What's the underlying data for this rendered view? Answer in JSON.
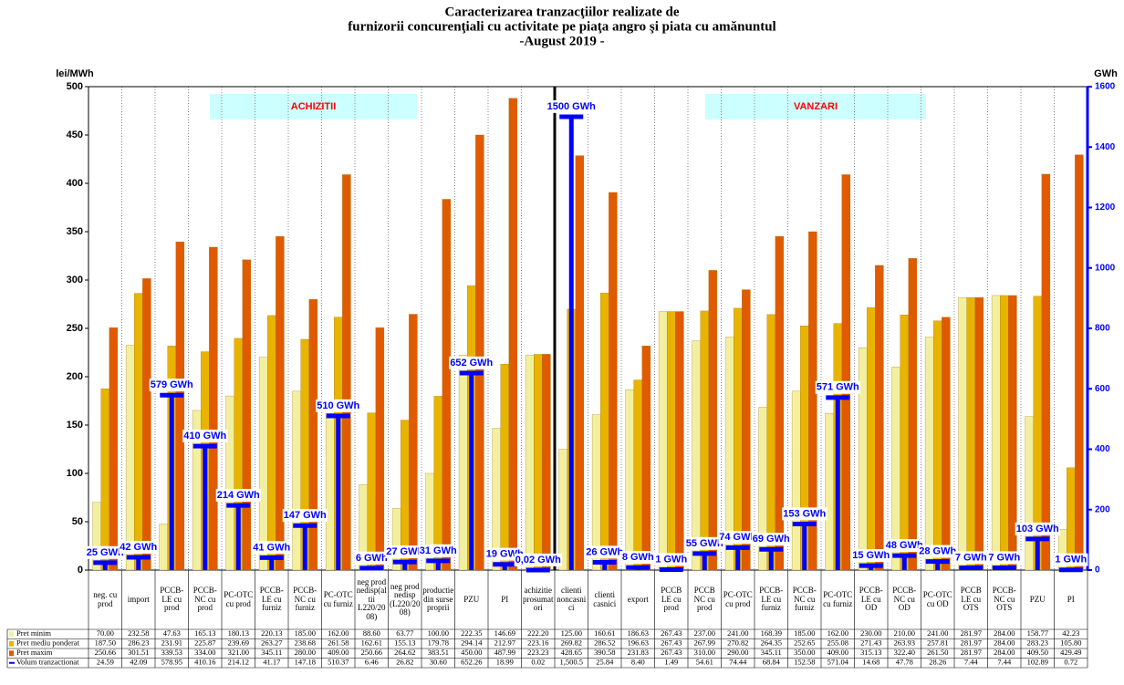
{
  "chart_data": {
    "type": "bar",
    "title": [
      "Caracterizarea tranzacţiilor realizate de",
      "furnizorii concurenţiali cu activitate pe piaţa angro şi piata cu amănuntul",
      "-August 2019 -"
    ],
    "ylabel": "lei/MWh",
    "y2label": "GWh",
    "ylim": [
      0,
      500
    ],
    "yticks": [
      0,
      50,
      100,
      150,
      200,
      250,
      300,
      350,
      400,
      450,
      500
    ],
    "y2lim": [
      0,
      1600
    ],
    "y2ticks": [
      0,
      200,
      400,
      600,
      800,
      1000,
      1200,
      1400,
      1600
    ],
    "annotations": [
      "ACHIZITII",
      "VANZARI"
    ],
    "categories": [
      "neg. cu prod",
      "import",
      "PCCB-LE cu prod",
      "PCCB-NC cu prod",
      "PC-OTC cu prod",
      "PCCB-LE cu furniz",
      "PCCB-NC cu furniz",
      "PC-OTC cu furniz",
      "neg prod nedisp(altii L220/2008)",
      "neg prod nedisp (L220/2008)",
      "productie din surse proprii",
      "PZU",
      "PI",
      "achizitie prosumatori",
      "clienti noncasnici",
      "clienti casnici",
      "export",
      "PCCB LE cu prod",
      "PCCB NC cu prod",
      "PC-OTC cu prod",
      "PCCB-LE cu furniz",
      "PCCB-NC cu furniz",
      "PC-OTC cu furniz",
      "PCCB-LE cu OD",
      "PCCB-NC cu OD",
      "PC-OTC cu OD",
      "PCCB LE cu OTS",
      "PCCB-NC cu OTS",
      "PZU",
      "PI"
    ],
    "series": [
      {
        "name": "Pret minim",
        "color": "#f2f0a0",
        "values": [
          70.0,
          232.58,
          47.63,
          165.13,
          180.13,
          220.13,
          185.0,
          162.0,
          88.6,
          63.77,
          100.0,
          222.35,
          146.69,
          222.2,
          125.0,
          160.61,
          186.63,
          267.43,
          237.0,
          241.0,
          168.39,
          185.0,
          162.0,
          230.0,
          210.0,
          241.0,
          281.97,
          284.0,
          158.77,
          42.23
        ],
        "value_labels": [
          "70.00",
          "232.58",
          "47.63",
          "165.13",
          "180.13",
          "220.13",
          "185.00",
          "162.00",
          "88.60",
          "63.77",
          "100.00",
          "222.35",
          "146.69",
          "222.20",
          "125.00",
          "160.61",
          "186.63",
          "267.43",
          "237.00",
          "241.00",
          "168.39",
          "185.00",
          "162.00",
          "230.00",
          "210.00",
          "241.00",
          "281.97",
          "284.00",
          "158.77",
          "42.23"
        ]
      },
      {
        "name": "Pret mediu ponderat",
        "color": "#e8b400",
        "values": [
          187.5,
          286.23,
          231.91,
          225.87,
          239.69,
          263.27,
          238.68,
          261.58,
          162.61,
          155.13,
          179.78,
          294.14,
          212.97,
          223.16,
          269.82,
          286.52,
          196.63,
          267.43,
          267.99,
          270.82,
          264.35,
          252.65,
          255.08,
          271.43,
          263.93,
          257.81,
          281.97,
          284.0,
          283.23,
          105.8
        ],
        "value_labels": [
          "187.50",
          "286.23",
          "231.91",
          "225.87",
          "239.69",
          "263.27",
          "238.68",
          "261.58",
          "162.61",
          "155.13",
          "179.78",
          "294.14",
          "212.97",
          "223.16",
          "269.82",
          "286.52",
          "196.63",
          "267.43",
          "267.99",
          "270.82",
          "264.35",
          "252.65",
          "255.08",
          "271.43",
          "263.93",
          "257.81",
          "281.97",
          "284.00",
          "283.23",
          "105.80"
        ]
      },
      {
        "name": "Pret maxim",
        "color": "#e05a00",
        "values": [
          250.66,
          301.51,
          339.53,
          334.0,
          321.0,
          345.11,
          280.0,
          409.0,
          250.66,
          264.62,
          383.51,
          450.0,
          487.99,
          223.23,
          428.65,
          390.58,
          231.83,
          267.43,
          310.0,
          290.0,
          345.11,
          350.0,
          409.0,
          315.13,
          322.4,
          261.5,
          281.97,
          284.0,
          409.5,
          429.49
        ],
        "value_labels": [
          "250.66",
          "301.51",
          "339.53",
          "334.00",
          "321.00",
          "345.11",
          "280.00",
          "409.00",
          "250.66",
          "264.62",
          "383.51",
          "450.00",
          "487.99",
          "223.23",
          "428.65",
          "390.58",
          "231.83",
          "267.43",
          "310.00",
          "290.00",
          "345.11",
          "350.00",
          "409.00",
          "315.13",
          "322.40",
          "261.50",
          "281.97",
          "284.00",
          "409.50",
          "429.49"
        ]
      },
      {
        "name": "Volum tranzactionat",
        "color": "#0000ff",
        "axis": "y2",
        "values": [
          24.59,
          42.09,
          578.95,
          410.16,
          214.12,
          41.17,
          147.18,
          510.37,
          6.46,
          26.82,
          30.6,
          652.26,
          18.99,
          0.02,
          1500.5,
          25.84,
          8.4,
          1.49,
          54.61,
          74.44,
          68.84,
          152.58,
          571.04,
          14.68,
          47.78,
          28.26,
          7.44,
          7.44,
          102.89,
          0.72
        ],
        "value_labels": [
          "24.59",
          "42.09",
          "578.95",
          "410.16",
          "214.12",
          "41.17",
          "147.18",
          "510.37",
          "6.46",
          "26.82",
          "30.60",
          "652.26",
          "18.99",
          "0.02",
          "1,500.5",
          "25.84",
          "8.40",
          "1.49",
          "54.61",
          "74.44",
          "68.84",
          "152.58",
          "571.04",
          "14.68",
          "47.78",
          "28.26",
          "7.44",
          "7.44",
          "102.89",
          "0.72"
        ],
        "callouts": [
          "25 GWh",
          "42 GWh",
          "579 GWh",
          "410 GWh",
          "214 GWh",
          "41 GWh",
          "147 GWh",
          "510 GWh",
          "6 GWh",
          "27 GWh",
          "31 GWh",
          "652 GWh",
          "19 GWh",
          "0,02 GWh",
          "1500 GWh",
          "26 GWh",
          "8 GWh",
          "1 GWh",
          "55 GWh",
          "74 GWh",
          "69 GWh",
          "153 GWh",
          "571 GWh",
          "15 GWh",
          "48 GWh",
          "28 GWh",
          "7 GWh",
          "7 GWh",
          "103 GWh",
          "1 GWh"
        ]
      }
    ]
  }
}
